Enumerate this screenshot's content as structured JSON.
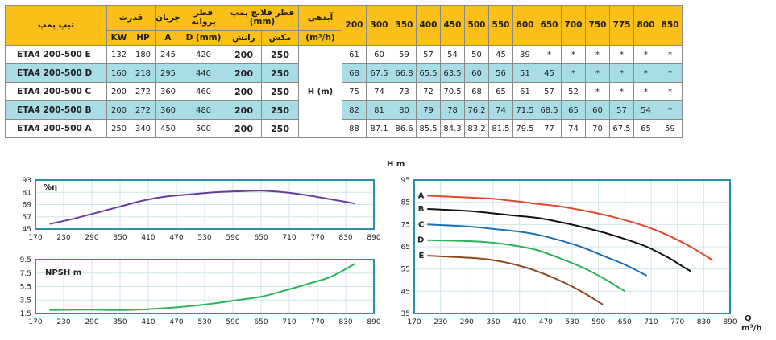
{
  "table": {
    "headers": {
      "model": "تیپ پمپ",
      "power": "قدرت",
      "current": "جریان",
      "impeller": "قطر پروانه",
      "flange": "قطر فلانچ پمپ (mm)",
      "flow_label": "آبدهی",
      "kw": "KW",
      "hp": "HP",
      "amp": "A",
      "dmm": "D (mm)",
      "outlet": "رانش",
      "inlet": "مکش",
      "flow_unit": "(m³/h)",
      "flows": [
        "200",
        "300",
        "350",
        "400",
        "450",
        "500",
        "550",
        "600",
        "650",
        "700",
        "750",
        "775",
        "800",
        "850"
      ]
    },
    "hm_label": "H (m)",
    "rows": [
      {
        "model": "ETA4 200-500 E",
        "kw": "132",
        "hp": "180",
        "a": "245",
        "d": "420",
        "out": "200",
        "in": "250",
        "vals": [
          "61",
          "60",
          "59",
          "57",
          "54",
          "50",
          "45",
          "39",
          "*",
          "*",
          "*",
          "*",
          "*",
          "*"
        ]
      },
      {
        "model": "ETA4 200-500 D",
        "kw": "160",
        "hp": "218",
        "a": "295",
        "d": "440",
        "out": "200",
        "in": "250",
        "vals": [
          "68",
          "67.5",
          "66.8",
          "65.5",
          "63.5",
          "60",
          "56",
          "51",
          "45",
          "*",
          "*",
          "*",
          "*",
          "*"
        ]
      },
      {
        "model": "ETA4 200-500 C",
        "kw": "200",
        "hp": "272",
        "a": "360",
        "d": "460",
        "out": "200",
        "in": "250",
        "vals": [
          "75",
          "74",
          "73",
          "72",
          "70.5",
          "68",
          "65",
          "61",
          "57",
          "52",
          "*",
          "*",
          "*",
          "*"
        ]
      },
      {
        "model": "ETA4 200-500 B",
        "kw": "200",
        "hp": "272",
        "a": "360",
        "d": "480",
        "out": "200",
        "in": "250",
        "vals": [
          "82",
          "81",
          "80",
          "79",
          "78",
          "76.2",
          "74",
          "71.5",
          "68.5",
          "65",
          "60",
          "57",
          "54",
          "*"
        ]
      },
      {
        "model": "ETA4 200-500 A",
        "kw": "250",
        "hp": "340",
        "a": "450",
        "d": "500",
        "out": "200",
        "in": "250",
        "vals": [
          "88",
          "87.1",
          "86.6",
          "85.5",
          "84.3",
          "83.2",
          "81.5",
          "79.5",
          "77",
          "74",
          "70",
          "67.5",
          "65",
          "59"
        ]
      }
    ]
  },
  "chart_data": [
    {
      "type": "line",
      "label": "%η",
      "xlim": [
        170,
        890
      ],
      "ylim": [
        45,
        93
      ],
      "xticks": [
        "170",
        "230",
        "290",
        "350",
        "410",
        "470",
        "530",
        "590",
        "650",
        "710",
        "770",
        "830",
        "890"
      ],
      "yticks": [
        "93",
        "81",
        "69",
        "57",
        "45"
      ],
      "grid": true,
      "series": [
        {
          "color": "#6a3d9a",
          "x": [
            200,
            250,
            300,
            350,
            400,
            450,
            500,
            550,
            600,
            650,
            700,
            750,
            800,
            850
          ],
          "y": [
            50,
            55,
            61,
            67,
            73,
            77,
            79,
            81,
            82,
            82.5,
            81,
            78,
            74,
            70
          ]
        }
      ]
    },
    {
      "type": "line",
      "label": "NPSH m",
      "xlim": [
        170,
        890
      ],
      "ylim": [
        1.5,
        9.5
      ],
      "xticks": [
        "170",
        "230",
        "290",
        "350",
        "410",
        "470",
        "530",
        "590",
        "650",
        "710",
        "770",
        "830",
        "890"
      ],
      "yticks": [
        "9.5",
        "7.5",
        "5.5",
        "3.5",
        "1.5"
      ],
      "grid": true,
      "series": [
        {
          "color": "#2bb457",
          "x": [
            200,
            250,
            300,
            350,
            400,
            450,
            500,
            550,
            600,
            650,
            700,
            750,
            800,
            850
          ],
          "y": [
            2.0,
            2.05,
            2.05,
            2.0,
            2.1,
            2.3,
            2.6,
            3.0,
            3.5,
            4.0,
            4.9,
            5.9,
            7.0,
            8.9
          ]
        }
      ]
    },
    {
      "type": "line",
      "ylabel": "H m",
      "xlabel": "Q m³/h",
      "xlim": [
        170,
        890
      ],
      "ylim": [
        35,
        95
      ],
      "xticks": [
        "170",
        "230",
        "290",
        "350",
        "410",
        "470",
        "530",
        "590",
        "650",
        "710",
        "770",
        "830",
        "890"
      ],
      "yticks": [
        "95",
        "85",
        "75",
        "65",
        "55",
        "45",
        "35"
      ],
      "grid": true,
      "series": [
        {
          "name": "A",
          "color": "#e2472b",
          "x": [
            200,
            300,
            350,
            400,
            450,
            500,
            550,
            600,
            650,
            700,
            750,
            800,
            850
          ],
          "y": [
            88,
            87.1,
            86.6,
            85.5,
            84.3,
            83.2,
            81.5,
            79.5,
            77,
            74,
            70,
            65,
            59
          ]
        },
        {
          "name": "B",
          "color": "#111111",
          "x": [
            200,
            300,
            350,
            400,
            450,
            500,
            550,
            600,
            650,
            700,
            750,
            775,
            800
          ],
          "y": [
            82,
            81,
            80,
            79,
            78,
            76.2,
            74,
            71.5,
            68.5,
            65,
            60,
            57,
            54
          ]
        },
        {
          "name": "C",
          "color": "#1f6fb5",
          "x": [
            200,
            300,
            350,
            400,
            450,
            500,
            550,
            600,
            650,
            700
          ],
          "y": [
            75,
            74,
            73,
            72,
            70.5,
            68,
            65,
            61,
            57,
            52
          ]
        },
        {
          "name": "D",
          "color": "#2bb457",
          "x": [
            200,
            300,
            350,
            400,
            450,
            500,
            550,
            600,
            650
          ],
          "y": [
            68,
            67.5,
            66.8,
            65.5,
            63.5,
            60,
            56,
            51,
            45
          ]
        },
        {
          "name": "E",
          "color": "#8b4a21",
          "x": [
            200,
            300,
            350,
            400,
            450,
            500,
            550,
            600
          ],
          "y": [
            61,
            60,
            59,
            57,
            54,
            50,
            45,
            39
          ]
        }
      ]
    }
  ]
}
